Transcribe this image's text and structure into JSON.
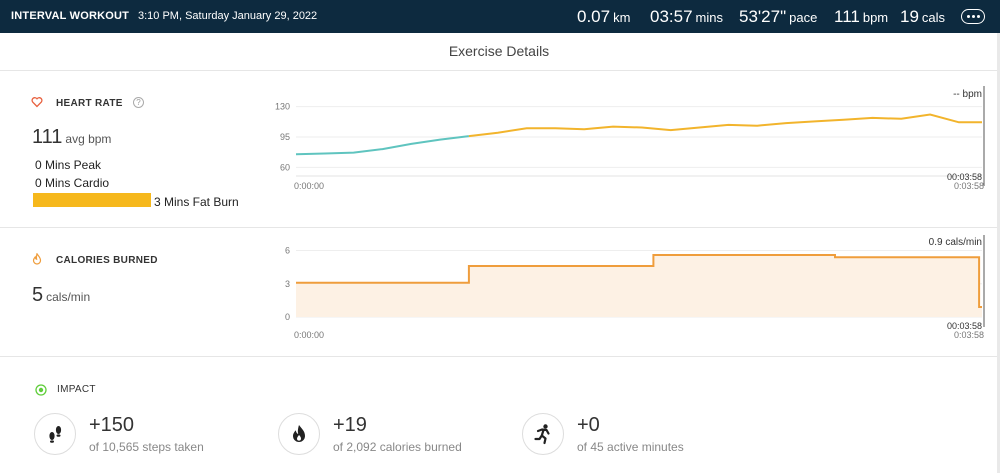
{
  "header": {
    "title": "INTERVAL WORKOUT",
    "datetime": "3:10 PM, Saturday January 29, 2022",
    "stats": [
      {
        "value": "0.07",
        "unit": "km"
      },
      {
        "value": "03:57",
        "unit": "mins"
      },
      {
        "value": "53'27\"",
        "unit": "pace"
      },
      {
        "value": "111",
        "unit": "bpm"
      },
      {
        "value": "19",
        "unit": "cals"
      }
    ],
    "more_icon": "ellipsis-icon"
  },
  "page_title": "Exercise Details",
  "heart_rate": {
    "label": "HEART RATE",
    "help": "?",
    "avg_value": "111",
    "avg_unit": "avg bpm",
    "zones": {
      "peak": "0 Mins Peak",
      "cardio": "0 Mins Cardio",
      "fat_burn": "3 Mins Fat Burn"
    },
    "colors": {
      "fat_burn": "#f6b81c",
      "below_zone": "#5fc4bf",
      "line": "#f2b42c"
    }
  },
  "calories": {
    "label": "CALORIES BURNED",
    "avg_value": "5",
    "avg_unit": "cals/min",
    "colors": {
      "line": "#ef9d3c",
      "fill": "#fdf1e4"
    }
  },
  "chart_data": [
    {
      "type": "line",
      "series_color": "#f2b42c",
      "ylim": [
        50,
        140
      ],
      "y_ticks": [
        "130",
        "95",
        "60"
      ],
      "y_tick_values": [
        130,
        95,
        60
      ],
      "x_start_label": "0:00:00",
      "x_end_label": "0:03:58",
      "cursor_time": "00:03:58",
      "readout": "-- bpm",
      "x_seconds": [
        0,
        10,
        20,
        30,
        40,
        50,
        60,
        70,
        80,
        90,
        100,
        110,
        120,
        130,
        140,
        150,
        160,
        170,
        180,
        190,
        200,
        210,
        220,
        230,
        238
      ],
      "y_bpm": [
        75,
        76,
        77,
        81,
        87,
        92,
        96,
        100,
        105,
        105,
        104,
        107,
        106,
        103,
        106,
        109,
        108,
        111,
        113,
        115,
        117,
        116,
        121,
        112,
        112
      ],
      "below_zone_until_seconds": 60
    },
    {
      "type": "area",
      "series_color": "#ef9d3c",
      "ylim": [
        0,
        6.5
      ],
      "y_ticks": [
        "6",
        "3",
        "0"
      ],
      "y_tick_values": [
        6,
        3,
        0
      ],
      "x_start_label": "0:00:00",
      "x_end_label": "0:03:58",
      "cursor_time": "00:03:58",
      "readout": "0.9 cals/min",
      "steps": [
        {
          "from_s": 0,
          "to_s": 60,
          "value": 3.1
        },
        {
          "from_s": 60,
          "to_s": 124,
          "value": 4.6
        },
        {
          "from_s": 124,
          "to_s": 187,
          "value": 5.6
        },
        {
          "from_s": 187,
          "to_s": 237,
          "value": 5.4
        },
        {
          "from_s": 237,
          "to_s": 238,
          "value": 0.9
        }
      ]
    }
  ],
  "impact": {
    "label": "IMPACT",
    "items": [
      {
        "value": "+150",
        "sub": "of 10,565 steps taken",
        "icon": "footsteps-icon"
      },
      {
        "value": "+19",
        "sub": "of 2,092 calories burned",
        "icon": "flame-icon"
      },
      {
        "value": "+0",
        "sub": "of 45 active minutes",
        "icon": "running-person-icon"
      }
    ]
  }
}
